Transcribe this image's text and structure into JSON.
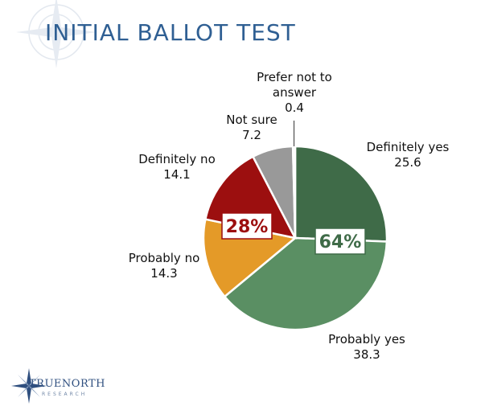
{
  "slide": {
    "title": "INITIAL BALLOT TEST"
  },
  "logo": {
    "name_part1": "TRUE",
    "name_part2": "NORTH",
    "subtitle": "RESEARCH"
  },
  "chart_data": {
    "type": "pie",
    "title": "INITIAL BALLOT TEST",
    "slices": [
      {
        "label": "Definitely yes",
        "value": 25.6,
        "color": "#3f6b48"
      },
      {
        "label": "Probably yes",
        "value": 38.3,
        "color": "#5a8f63"
      },
      {
        "label": "Probably no",
        "value": 14.3,
        "color": "#e49a28"
      },
      {
        "label": "Definitely no",
        "value": 14.1,
        "color": "#9c0f0f"
      },
      {
        "label": "Not sure",
        "value": 7.2,
        "color": "#999999"
      },
      {
        "label": "Prefer not to answer",
        "value": 0.4,
        "color": "#f2f2f2"
      }
    ],
    "summary_boxes": [
      {
        "text": "64%",
        "color": "#3f6b48"
      },
      {
        "text": "28%",
        "color": "#9c0f0f"
      }
    ]
  }
}
